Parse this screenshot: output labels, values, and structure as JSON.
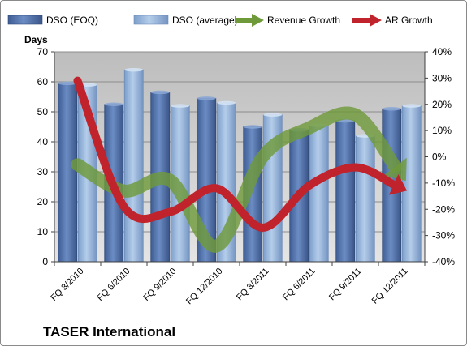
{
  "chart_data": {
    "type": "bar",
    "company": "TASER International",
    "ylabel": "Days",
    "ylim": [
      0,
      70
    ],
    "y_ticks": [
      "0",
      "10",
      "20",
      "30",
      "40",
      "50",
      "60",
      "70"
    ],
    "y2lim": [
      -40,
      40
    ],
    "y2_ticks": [
      "-40%",
      "-30%",
      "-20%",
      "-10%",
      "0%",
      "10%",
      "20%",
      "30%",
      "40%"
    ],
    "categories": [
      "FQ 3/2010",
      "FQ 6/2010",
      "FQ 9/2010",
      "FQ 12/2010",
      "FQ 3/2011",
      "FQ 6/2011",
      "FQ 9/2011",
      "FQ 12/2011"
    ],
    "bar_series": [
      {
        "name": "DSO (EOQ)",
        "values": [
          59.5,
          52.5,
          56.5,
          54.5,
          45,
          44,
          47,
          51
        ],
        "color": "#4f6fa8"
      },
      {
        "name": "DSO (average)",
        "values": [
          59,
          64,
          52,
          53,
          49,
          45.5,
          42,
          52
        ],
        "color": "#8fb0d8"
      }
    ],
    "line_series": [
      {
        "name": "Revenue Growth",
        "values": [
          -3,
          -13,
          -9,
          -34,
          0,
          11,
          16,
          -7
        ],
        "color": "#6f9a3a",
        "axis": "right"
      },
      {
        "name": "AR Growth",
        "values": [
          29,
          -19,
          -21,
          -12,
          -27,
          -11,
          -4,
          -12
        ],
        "color": "#c0232b",
        "axis": "right"
      }
    ],
    "legend_position": "top",
    "grid": true,
    "plot_background": "#c0c0c0"
  }
}
